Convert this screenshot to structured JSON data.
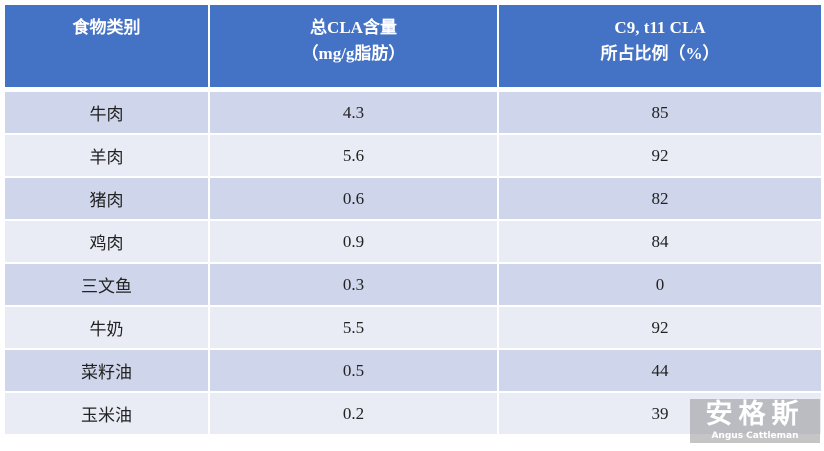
{
  "table": {
    "header": [
      [
        "食物类别"
      ],
      [
        "总CLA含量",
        "（mg/g脂肪）"
      ],
      [
        "C9, t11 CLA",
        "所占比例（%）"
      ]
    ],
    "rows": [
      [
        "牛肉",
        "4.3",
        "85"
      ],
      [
        "羊肉",
        "5.6",
        "92"
      ],
      [
        "猪肉",
        "0.6",
        "82"
      ],
      [
        "鸡肉",
        "0.9",
        "84"
      ],
      [
        "三文鱼",
        "0.3",
        "0"
      ],
      [
        "牛奶",
        "5.5",
        "92"
      ],
      [
        "菜籽油",
        "0.5",
        "44"
      ],
      [
        "玉米油",
        "0.2",
        "39"
      ]
    ]
  },
  "watermark": {
    "title": "安格斯",
    "subtitle": "Angus Cattleman"
  }
}
